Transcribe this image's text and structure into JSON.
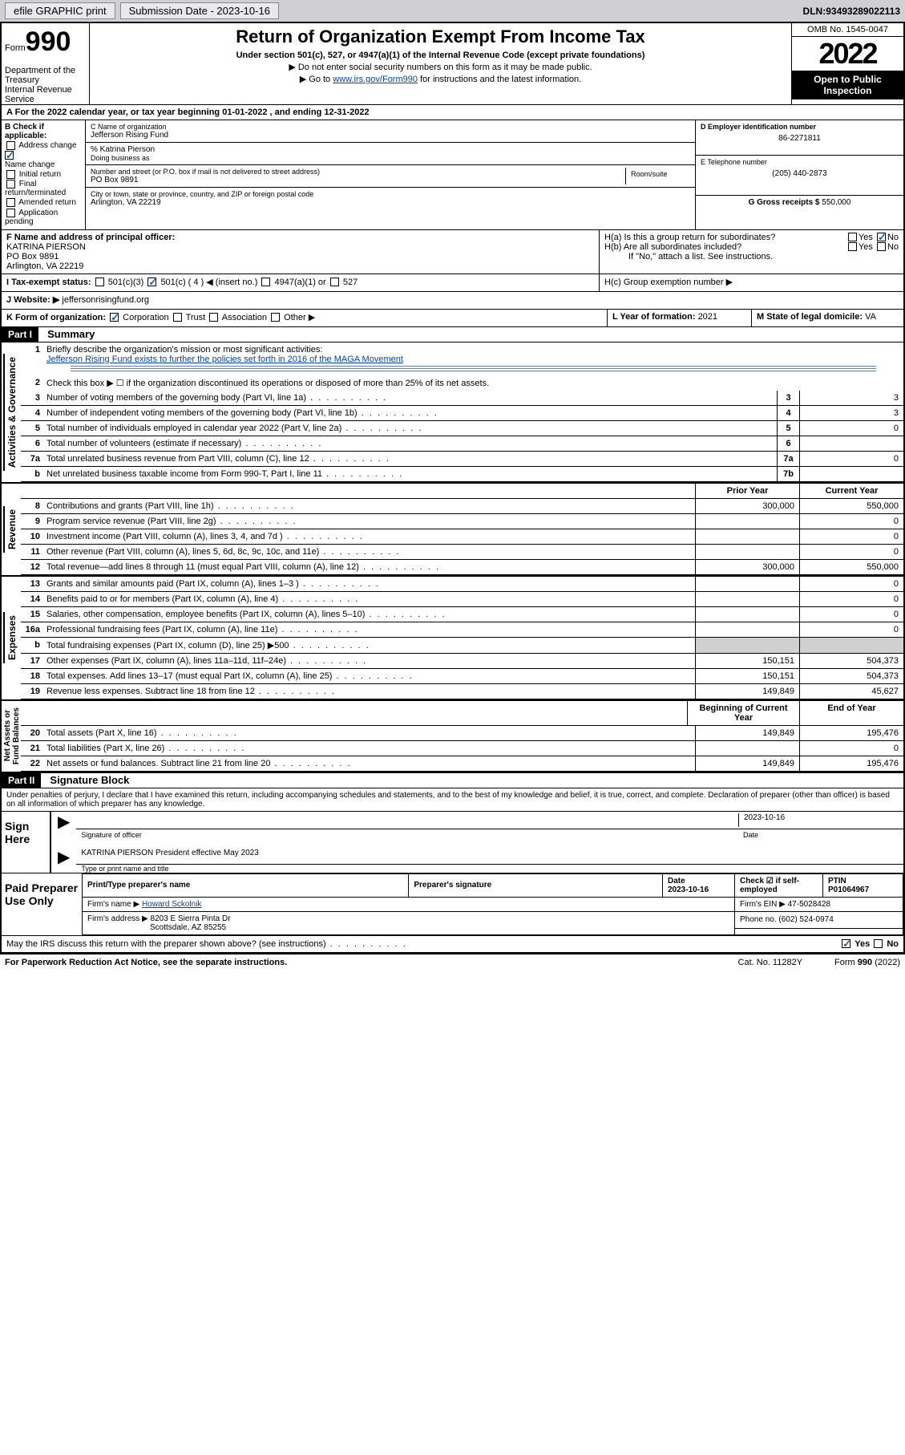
{
  "top": {
    "efile": "efile GRAPHIC print",
    "subdate_label": "Submission Date - ",
    "subdate": "2023-10-16",
    "dln_label": "DLN: ",
    "dln": "93493289022113"
  },
  "header": {
    "form_prefix": "Form",
    "form_num": "990",
    "title": "Return of Organization Exempt From Income Tax",
    "sub": "Under section 501(c), 527, or 4947(a)(1) of the Internal Revenue Code (except private foundations)",
    "note1": "▶ Do not enter social security numbers on this form as it may be made public.",
    "note2_pre": "▶ Go to ",
    "note2_link": "www.irs.gov/Form990",
    "note2_post": " for instructions and the latest information.",
    "dept": "Department of the Treasury\nInternal Revenue Service",
    "omb": "OMB No. 1545-0047",
    "year": "2022",
    "open": "Open to Public Inspection"
  },
  "period": "For the 2022 calendar year, or tax year beginning 01-01-2022   , and ending 12-31-2022",
  "block_b": {
    "hdr": "B Check if applicable:",
    "opts": [
      "Address change",
      "Name change",
      "Initial return",
      "Final return/terminated",
      "Amended return",
      "Application pending"
    ],
    "checked_idx": 1
  },
  "block_c": {
    "name_label": "C Name of organization",
    "name": "Jefferson Rising Fund",
    "pct_label": "% Katrina Pierson",
    "dba_label": "Doing business as",
    "street_label": "Number and street (or P.O. box if mail is not delivered to street address)",
    "room_label": "Room/suite",
    "street": "PO Box 9891",
    "city_label": "City or town, state or province, country, and ZIP or foreign postal code",
    "city": "Arlington, VA  22219"
  },
  "block_d": {
    "ein_label": "D Employer identification number",
    "ein": "86-2271811",
    "tel_label": "E Telephone number",
    "tel": "(205) 440-2873",
    "gross_label": "G Gross receipts $ ",
    "gross": "550,000"
  },
  "block_f": {
    "label": "F  Name and address of principal officer:",
    "name": "KATRINA PIERSON",
    "addr1": "PO Box 9891",
    "addr2": "Arlington, VA  22219"
  },
  "block_h": {
    "ha": "H(a)  Is this a group return for subordinates?",
    "hb": "H(b)  Are all subordinates included?",
    "hb_note": "If \"No,\" attach a list. See instructions.",
    "hc": "H(c)  Group exemption number ▶",
    "yes": "Yes",
    "no": "No"
  },
  "block_i": {
    "label": "I   Tax-exempt status:",
    "opts": [
      "501(c)(3)",
      "501(c) ( 4 ) ◀ (insert no.)",
      "4947(a)(1) or",
      "527"
    ]
  },
  "block_j": {
    "label": "J   Website: ▶ ",
    "val": "jeffersonrisingfund.org"
  },
  "block_k": {
    "label": "K Form of organization:",
    "opts": [
      "Corporation",
      "Trust",
      "Association",
      "Other ▶"
    ]
  },
  "block_l": {
    "label": "L Year of formation: ",
    "val": "2021"
  },
  "block_m": {
    "label": "M State of legal domicile: ",
    "val": "VA"
  },
  "part1": {
    "hdr": "Part I",
    "title": "Summary",
    "vlabels": {
      "gov": "Activities & Governance",
      "rev": "Revenue",
      "exp": "Expenses",
      "net": "Net Assets or\nFund Balances"
    },
    "l1_label": "Briefly describe the organization's mission or most significant activities:",
    "l1_text": "Jefferson Rising Fund exists to further the policies set forth in 2016 of the MAGA Movement",
    "l2": "Check this box ▶ ☐  if the organization discontinued its operations or disposed of more than 25% of its net assets.",
    "lines_gov": [
      {
        "n": "3",
        "t": "Number of voting members of the governing body (Part VI, line 1a)",
        "box": "3",
        "v": "3"
      },
      {
        "n": "4",
        "t": "Number of independent voting members of the governing body (Part VI, line 1b)",
        "box": "4",
        "v": "3"
      },
      {
        "n": "5",
        "t": "Total number of individuals employed in calendar year 2022 (Part V, line 2a)",
        "box": "5",
        "v": "0"
      },
      {
        "n": "6",
        "t": "Total number of volunteers (estimate if necessary)",
        "box": "6",
        "v": ""
      },
      {
        "n": "7a",
        "t": "Total unrelated business revenue from Part VIII, column (C), line 12",
        "box": "7a",
        "v": "0"
      },
      {
        "n": "b",
        "t": "Net unrelated business taxable income from Form 990-T, Part I, line 11",
        "box": "7b",
        "v": ""
      }
    ],
    "col_hdr": {
      "prior": "Prior Year",
      "current": "Current Year",
      "boy": "Beginning of Current Year",
      "eoy": "End of Year"
    },
    "lines_rev": [
      {
        "n": "8",
        "t": "Contributions and grants (Part VIII, line 1h)",
        "p": "300,000",
        "c": "550,000"
      },
      {
        "n": "9",
        "t": "Program service revenue (Part VIII, line 2g)",
        "p": "",
        "c": "0"
      },
      {
        "n": "10",
        "t": "Investment income (Part VIII, column (A), lines 3, 4, and 7d )",
        "p": "",
        "c": "0"
      },
      {
        "n": "11",
        "t": "Other revenue (Part VIII, column (A), lines 5, 6d, 8c, 9c, 10c, and 11e)",
        "p": "",
        "c": "0"
      },
      {
        "n": "12",
        "t": "Total revenue—add lines 8 through 11 (must equal Part VIII, column (A), line 12)",
        "p": "300,000",
        "c": "550,000"
      }
    ],
    "lines_exp": [
      {
        "n": "13",
        "t": "Grants and similar amounts paid (Part IX, column (A), lines 1–3 )",
        "p": "",
        "c": "0"
      },
      {
        "n": "14",
        "t": "Benefits paid to or for members (Part IX, column (A), line 4)",
        "p": "",
        "c": "0"
      },
      {
        "n": "15",
        "t": "Salaries, other compensation, employee benefits (Part IX, column (A), lines 5–10)",
        "p": "",
        "c": "0"
      },
      {
        "n": "16a",
        "t": "Professional fundraising fees (Part IX, column (A), line 11e)",
        "p": "",
        "c": "0"
      },
      {
        "n": "b",
        "t": "Total fundraising expenses (Part IX, column (D), line 25) ▶500",
        "p": "shaded",
        "c": "shaded"
      },
      {
        "n": "17",
        "t": "Other expenses (Part IX, column (A), lines 11a–11d, 11f–24e)",
        "p": "150,151",
        "c": "504,373"
      },
      {
        "n": "18",
        "t": "Total expenses. Add lines 13–17 (must equal Part IX, column (A), line 25)",
        "p": "150,151",
        "c": "504,373"
      },
      {
        "n": "19",
        "t": "Revenue less expenses. Subtract line 18 from line 12",
        "p": "149,849",
        "c": "45,627"
      }
    ],
    "lines_net": [
      {
        "n": "20",
        "t": "Total assets (Part X, line 16)",
        "p": "149,849",
        "c": "195,476"
      },
      {
        "n": "21",
        "t": "Total liabilities (Part X, line 26)",
        "p": "",
        "c": "0"
      },
      {
        "n": "22",
        "t": "Net assets or fund balances. Subtract line 21 from line 20",
        "p": "149,849",
        "c": "195,476"
      }
    ]
  },
  "part2": {
    "hdr": "Part II",
    "title": "Signature Block",
    "penalty": "Under penalties of perjury, I declare that I have examined this return, including accompanying schedules and statements, and to the best of my knowledge and belief, it is true, correct, and complete. Declaration of preparer (other than officer) is based on all information of which preparer has any knowledge.",
    "sign_here": "Sign Here",
    "sig_officer": "Signature of officer",
    "sig_date": "2023-10-16",
    "date_lbl": "Date",
    "officer_name": "KATRINA PIERSON  President effective May 2023",
    "type_name": "Type or print name and title",
    "paid": "Paid Preparer Use Only",
    "prep_hdrs": [
      "Print/Type preparer's name",
      "Preparer's signature",
      "Date",
      "Check ☑ if self-employed",
      "PTIN"
    ],
    "prep_date": "2023-10-16",
    "ptin": "P01064967",
    "firm_name_lbl": "Firm's name    ▶ ",
    "firm_name": "Howard Sckolnik",
    "firm_ein_lbl": "Firm's EIN ▶ ",
    "firm_ein": "47-5028428",
    "firm_addr_lbl": "Firm's address ▶ ",
    "firm_addr1": "8203 E Sierra Pinta Dr",
    "firm_addr2": "Scottsdale, AZ  85255",
    "phone_lbl": "Phone no. ",
    "phone": "(602) 524-0974",
    "discuss": "May the IRS discuss this return with the preparer shown above? (see instructions)",
    "yes": "Yes",
    "no": "No"
  },
  "footer": {
    "pra": "For Paperwork Reduction Act Notice, see the separate instructions.",
    "cat": "Cat. No. 11282Y",
    "form": "Form 990 (2022)"
  }
}
